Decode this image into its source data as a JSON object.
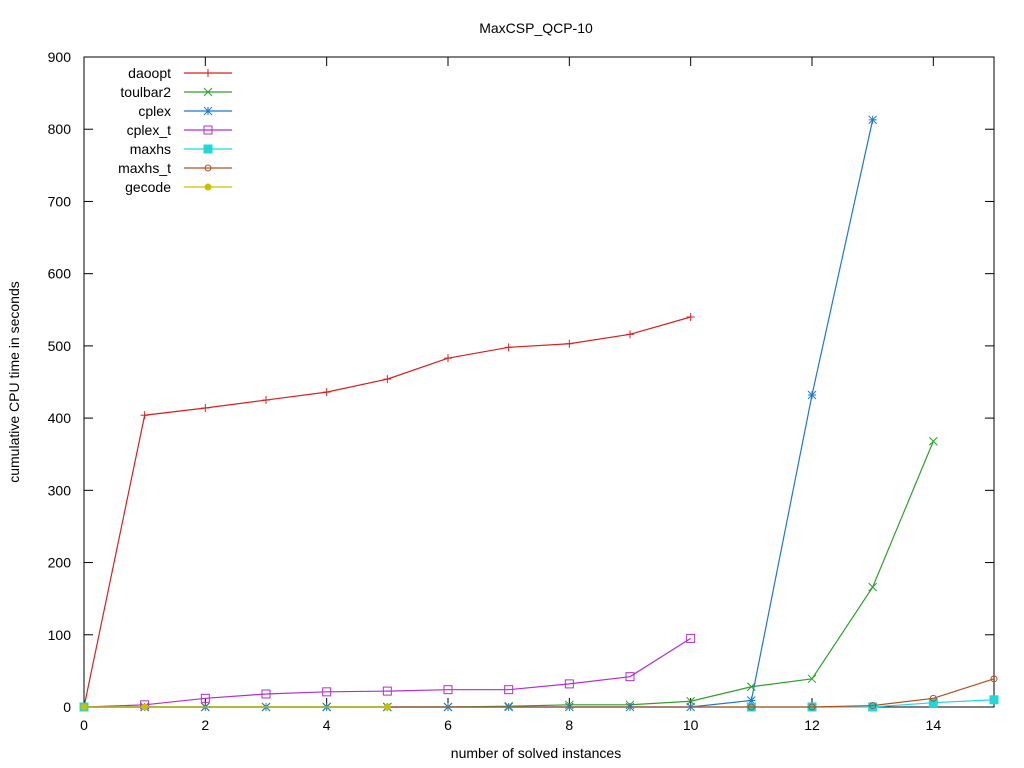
{
  "chart_data": {
    "type": "line",
    "title": "MaxCSP_QCP-10",
    "xlabel": "number of solved instances",
    "ylabel": "cumulative CPU time in seconds",
    "xlim": [
      0,
      15
    ],
    "ylim": [
      0,
      900
    ],
    "xticks": [
      0,
      2,
      4,
      6,
      8,
      10,
      12,
      14
    ],
    "yticks": [
      0,
      100,
      200,
      300,
      400,
      500,
      600,
      700,
      800,
      900
    ],
    "grid": false,
    "legend_position": "top-left",
    "series": [
      {
        "name": "daoopt",
        "color": "#d62020",
        "marker": "plus",
        "x": [
          0,
          1,
          2,
          3,
          4,
          5,
          6,
          7,
          8,
          9,
          10
        ],
        "values": [
          0,
          404,
          414,
          425,
          436,
          454,
          483,
          498,
          503,
          516,
          540
        ]
      },
      {
        "name": "toulbar2",
        "color": "#2ca02c",
        "marker": "cross",
        "x": [
          0,
          1,
          2,
          3,
          4,
          5,
          6,
          7,
          8,
          9,
          10,
          11,
          12,
          13,
          14
        ],
        "values": [
          0,
          0,
          0,
          0,
          0,
          0,
          0,
          1,
          3,
          3,
          8,
          28,
          39,
          166,
          368
        ]
      },
      {
        "name": "cplex",
        "color": "#1f77d0",
        "marker": "star",
        "x": [
          0,
          1,
          2,
          3,
          4,
          5,
          6,
          7,
          8,
          9,
          10,
          11,
          12,
          13
        ],
        "values": [
          0,
          0,
          0,
          0,
          0,
          0,
          0,
          0,
          0,
          0,
          0,
          9,
          432,
          813
        ]
      },
      {
        "name": "cplex_t",
        "color": "#b030d0",
        "marker": "open-square",
        "x": [
          0,
          1,
          2,
          3,
          4,
          5,
          6,
          7,
          8,
          9,
          10
        ],
        "values": [
          0,
          3,
          12,
          18,
          21,
          22,
          24,
          24,
          32,
          42,
          95
        ]
      },
      {
        "name": "maxhs",
        "color": "#20d8d8",
        "marker": "filled-square",
        "x": [
          0,
          11,
          12,
          13,
          14,
          15
        ],
        "values": [
          0,
          0,
          0,
          0,
          6,
          10
        ]
      },
      {
        "name": "maxhs_t",
        "color": "#b05020",
        "marker": "open-circle",
        "x": [
          0,
          11,
          12,
          13,
          14,
          15
        ],
        "values": [
          0,
          0,
          0,
          2,
          12,
          39
        ]
      },
      {
        "name": "gecode",
        "color": "#c8c000",
        "marker": "filled-circle",
        "x": [
          0,
          1,
          5
        ],
        "values": [
          0,
          0,
          0
        ]
      }
    ]
  }
}
